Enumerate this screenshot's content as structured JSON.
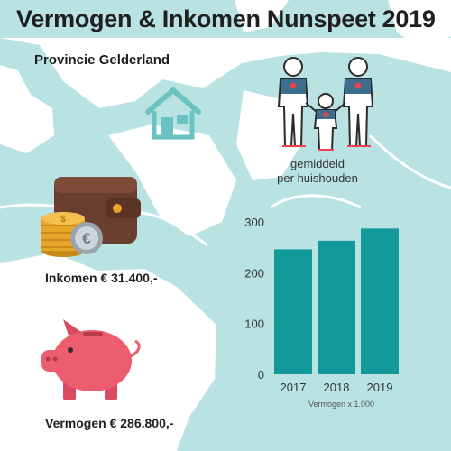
{
  "header": {
    "title": "Vermogen & Inkomen Nunspeet 2019",
    "subtitle": "Provincie Gelderland"
  },
  "family_caption": [
    "gemiddeld",
    "per huishouden"
  ],
  "stats": {
    "income": "Inkomen € 31.400,-",
    "wealth": "Vermogen € 286.800,-"
  },
  "chart_note": "Vermogen x 1.000",
  "colors": {
    "map_water": "#b9e3e3",
    "bar": "#14999a",
    "wallet": "#6a3e2f",
    "coin": "#e6a629",
    "piggy": "#ec5d6f",
    "house_icon": "#6cc2c2"
  },
  "icons": [
    "house-icon",
    "family-icon",
    "wallet-icon",
    "coins-icon",
    "euro-coin-icon",
    "piggy-bank-icon"
  ],
  "chart_data": {
    "type": "bar",
    "categories": [
      "2017",
      "2018",
      "2019"
    ],
    "values": [
      246,
      263,
      287
    ],
    "ylim": [
      0,
      300
    ],
    "yticks": [
      "0",
      "100",
      "200",
      "300"
    ],
    "grid": false,
    "legend": "none"
  }
}
